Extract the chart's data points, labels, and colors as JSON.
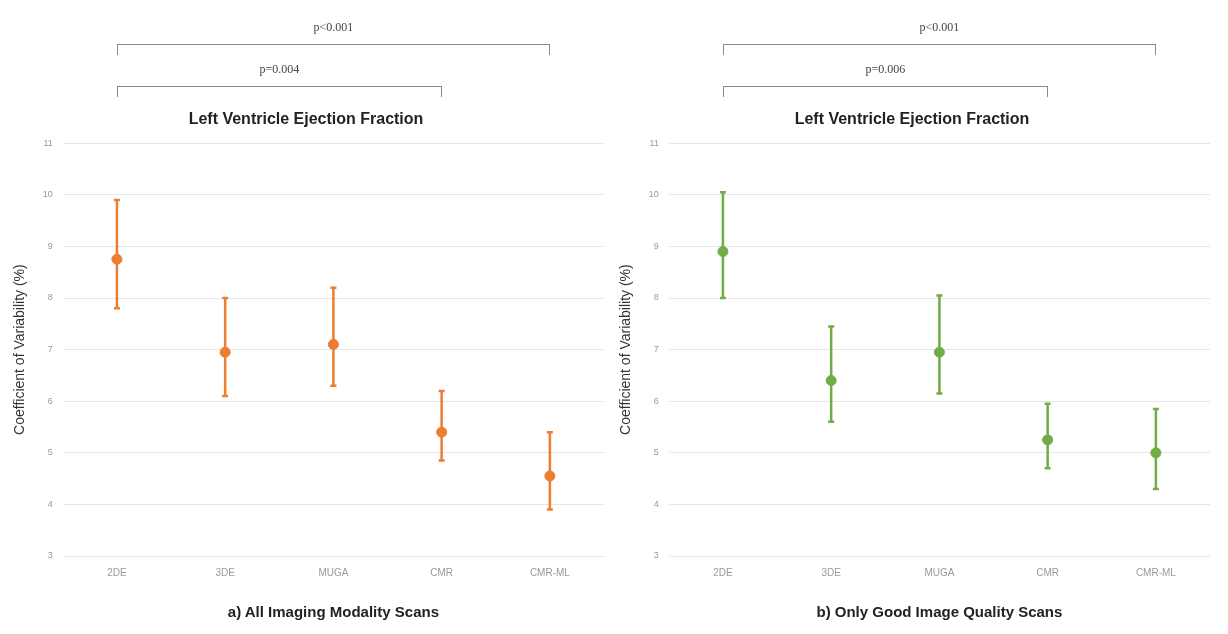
{
  "chart_data": [
    {
      "type": "scatter",
      "title": "Left Ventricle Ejection Fraction",
      "xlabel": "a) All Imaging Modality Scans",
      "ylabel": "Coefficient of Variability (%)",
      "categories": [
        "2DE",
        "3DE",
        "MUGA",
        "CMR",
        "CMR-ML"
      ],
      "series": [
        {
          "color": "#ed7d31",
          "values": [
            8.75,
            6.95,
            7.1,
            5.4,
            4.55
          ],
          "errors": [
            [
              7.8,
              9.9
            ],
            [
              6.1,
              8.0
            ],
            [
              6.3,
              8.2
            ],
            [
              4.85,
              6.2
            ],
            [
              3.9,
              5.4
            ]
          ]
        }
      ],
      "ylim": [
        3,
        11
      ],
      "yticks": [
        3,
        4,
        5,
        6,
        7,
        8,
        9,
        10,
        11
      ],
      "grid": "y",
      "legend": false,
      "marker": "circle",
      "annotations": [
        "p<0.001",
        "p=0.004"
      ]
    },
    {
      "type": "scatter",
      "title": "Left Ventricle Ejection Fraction",
      "xlabel": "b) Only Good Image Quality Scans",
      "ylabel": "Coefficient of Variability (%)",
      "categories": [
        "2DE",
        "3DE",
        "MUGA",
        "CMR",
        "CMR-ML"
      ],
      "series": [
        {
          "color": "#70ad47",
          "values": [
            8.9,
            6.4,
            6.95,
            5.25,
            5.0
          ],
          "errors": [
            [
              8.0,
              10.05
            ],
            [
              5.6,
              7.45
            ],
            [
              6.15,
              8.05
            ],
            [
              4.7,
              5.95
            ],
            [
              4.3,
              5.85
            ]
          ]
        }
      ],
      "ylim": [
        3,
        11
      ],
      "yticks": [
        3,
        4,
        5,
        6,
        7,
        8,
        9,
        10,
        11
      ],
      "grid": "y",
      "legend": false,
      "marker": "circle",
      "annotations": [
        "p<0.001",
        "p=0.006"
      ]
    }
  ]
}
